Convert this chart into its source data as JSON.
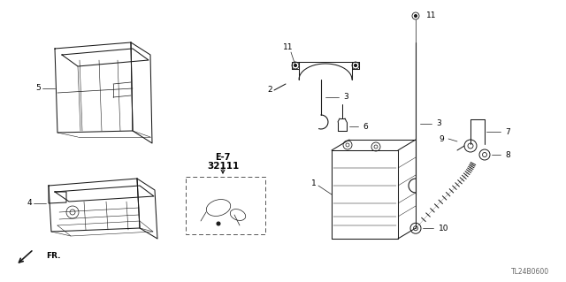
{
  "bg_color": "#ffffff",
  "line_color": "#1a1a1a",
  "fig_width": 6.4,
  "fig_height": 3.19,
  "watermark": "TL24B0600",
  "fr_label": "FR."
}
